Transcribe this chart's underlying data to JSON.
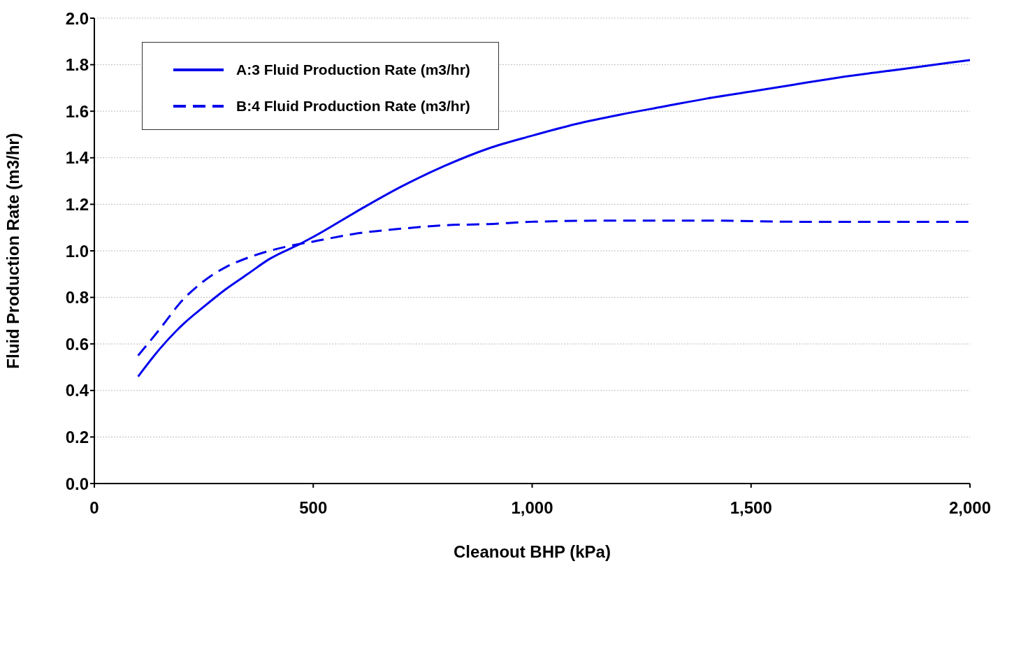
{
  "chart_data": {
    "type": "line",
    "xlabel": "Cleanout BHP  (kPa)",
    "ylabel": "Fluid Production Rate (m3/hr)",
    "xlim": [
      0,
      2000
    ],
    "xticks": [
      {
        "value": 0,
        "label": "0"
      },
      {
        "value": 500,
        "label": "500"
      },
      {
        "value": 1000,
        "label": "1,000"
      },
      {
        "value": 1500,
        "label": "1,500"
      },
      {
        "value": 2000,
        "label": "2,000"
      }
    ],
    "ylim": [
      0,
      2
    ],
    "yticks": [
      {
        "value": 0,
        "label": "0.0"
      },
      {
        "value": 0.2,
        "label": "0.2"
      },
      {
        "value": 0.4,
        "label": "0.4"
      },
      {
        "value": 0.6,
        "label": "0.6"
      },
      {
        "value": 0.8,
        "label": "0.8"
      },
      {
        "value": 1,
        "label": "1.0"
      },
      {
        "value": 1.2,
        "label": "1.2"
      },
      {
        "value": 1.4,
        "label": "1.4"
      },
      {
        "value": 1.6,
        "label": "1.6"
      },
      {
        "value": 1.8,
        "label": "1.8"
      },
      {
        "value": 2,
        "label": "2.0"
      }
    ],
    "grid": "y",
    "legend": "top left",
    "marker": "none",
    "series": [
      {
        "name": "A:3 Fluid Production Rate (m3/hr)",
        "color": "#0000ee",
        "line_style": "solid",
        "x": [
          100,
          150,
          200,
          250,
          300,
          350,
          400,
          470,
          500,
          600,
          700,
          800,
          900,
          1000,
          1100,
          1200,
          1300,
          1400,
          1500,
          1600,
          1700,
          1800,
          1900,
          2000
        ],
        "values": [
          0.46,
          0.58,
          0.68,
          0.76,
          0.835,
          0.9,
          0.965,
          1.03,
          1.06,
          1.17,
          1.275,
          1.365,
          1.44,
          1.495,
          1.545,
          1.585,
          1.62,
          1.655,
          1.685,
          1.715,
          1.745,
          1.77,
          1.795,
          1.82
        ]
      },
      {
        "name": "B:4 Fluid Production Rate (m3/hr)",
        "color": "#0000ee",
        "line_style": "dashed",
        "x": [
          100,
          150,
          200,
          250,
          300,
          350,
          400,
          470,
          500,
          600,
          700,
          800,
          900,
          1000,
          1200,
          1400,
          1600,
          1800,
          2000
        ],
        "values": [
          0.55,
          0.665,
          0.785,
          0.87,
          0.93,
          0.97,
          1.0,
          1.03,
          1.04,
          1.075,
          1.095,
          1.11,
          1.115,
          1.125,
          1.13,
          1.13,
          1.125,
          1.125,
          1.125
        ]
      }
    ]
  }
}
